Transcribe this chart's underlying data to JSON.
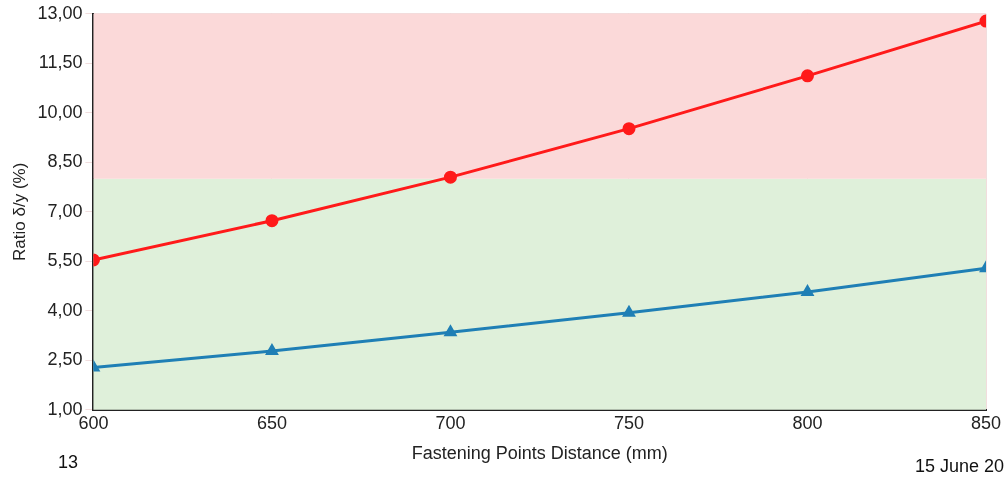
{
  "chart_data": {
    "type": "line",
    "xlabel": "Fastening Points Distance (mm)",
    "ylabel": "Ratio δ/y (%)",
    "x": [
      600,
      650,
      700,
      750,
      800,
      850
    ],
    "series": [
      {
        "color": "#ff1a1a",
        "marker": "circle",
        "values": [
          5.54,
          6.73,
          8.05,
          9.52,
          11.12,
          12.78
        ]
      },
      {
        "color": "#1f7fb5",
        "marker": "triangle",
        "values": [
          2.28,
          2.78,
          3.35,
          3.94,
          4.57,
          5.29
        ]
      }
    ],
    "xlim": [
      600,
      850
    ],
    "xticks": [
      600,
      650,
      700,
      750,
      800,
      850
    ],
    "ylim": [
      1,
      13
    ],
    "yticks": [
      {
        "value": 1,
        "label": "1,00"
      },
      {
        "value": 2.5,
        "label": "2,50"
      },
      {
        "value": 4,
        "label": "4,00"
      },
      {
        "value": 5.5,
        "label": "5,50"
      },
      {
        "value": 7,
        "label": "7,00"
      },
      {
        "value": 8.5,
        "label": "8,50"
      },
      {
        "value": 10,
        "label": "10,00"
      },
      {
        "value": 11.5,
        "label": "11,50"
      },
      {
        "value": 13,
        "label": "13,00"
      }
    ],
    "bands": [
      {
        "axis": "y",
        "from": 1,
        "to": 8,
        "color": "#dff0da"
      },
      {
        "axis": "y",
        "from": 8,
        "to": 13,
        "color": "#fbd9d9"
      }
    ],
    "grid": true,
    "annotations": [
      "13",
      "15 June 20"
    ]
  }
}
